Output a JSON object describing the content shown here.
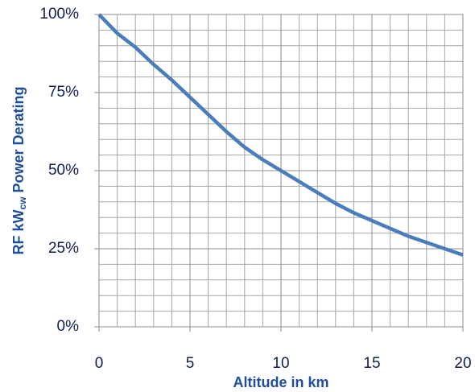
{
  "chart_data": {
    "type": "line",
    "xlabel": "Altitude in km",
    "ylabel": {
      "text": "RF kW",
      "subscript": "cw",
      "suffix": " Power Derating"
    },
    "x": [
      0,
      1,
      2,
      3,
      4,
      5,
      6,
      7,
      8,
      9,
      10,
      11,
      12,
      13,
      14,
      15,
      16,
      17,
      18,
      19,
      20
    ],
    "series": [
      {
        "color": "#4a7ebb",
        "values": [
          100,
          94,
          89.5,
          84,
          79,
          73.5,
          68,
          62.5,
          57.5,
          53.5,
          50,
          46.5,
          43,
          39.5,
          36.5,
          34,
          31.5,
          29,
          27,
          25,
          23
        ]
      }
    ],
    "xlim": [
      0,
      20
    ],
    "xticks": [
      0,
      5,
      10,
      15,
      20
    ],
    "ylim": [
      0,
      100
    ],
    "yticks": [
      {
        "value": 0,
        "label": "0%"
      },
      {
        "value": 25,
        "label": "25%"
      },
      {
        "value": 50,
        "label": "50%"
      },
      {
        "value": 75,
        "label": "75%"
      },
      {
        "value": 100,
        "label": "100%"
      }
    ],
    "grid": true
  }
}
